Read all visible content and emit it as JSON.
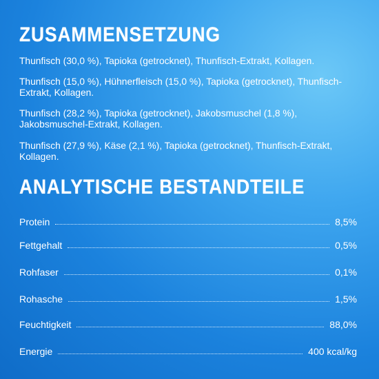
{
  "composition": {
    "heading": "ZUSAMMENSETZUNG",
    "paragraphs": [
      "Thunfisch (30,0 %), Tapioka (getrocknet), Thunfisch-Extrakt, Kollagen.",
      "Thunfisch (15,0 %), Hühnerfleisch (15,0 %), Tapioka (getrocknet), Thunfisch-Extrakt, Kollagen.",
      "Thunfisch (28,2 %), Tapioka (getrocknet), Jakobsmuschel (1,8 %), Jakobsmuschel-Extrakt, Kollagen.",
      "Thunfisch (27,9 %), Käse (2,1 %), Tapioka (getrocknet), Thunfisch-Extrakt, Kollagen."
    ]
  },
  "analysis": {
    "heading": "ANALYTISCHE BESTANDTEILE",
    "rows": [
      {
        "label": "Protein",
        "value": "8,5%"
      },
      {
        "label": "Fettgehalt",
        "value": "0,5%"
      },
      {
        "label": "Rohfaser",
        "value": "0,1%"
      },
      {
        "label": "Rohasche",
        "value": "1,5%"
      },
      {
        "label": "Feuchtigkeit",
        "value": "88,0%"
      },
      {
        "label": "Energie",
        "value": "400 kcal/kg"
      }
    ]
  }
}
